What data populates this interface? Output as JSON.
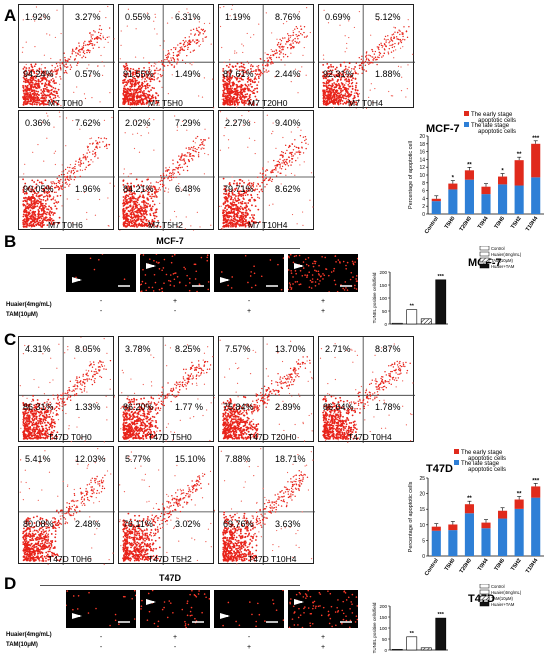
{
  "panels": {
    "A": {
      "letter": "A",
      "plots": [
        {
          "label": "M7 T0H0",
          "ul": "1.92%",
          "ur": "3.27%",
          "ll": "94.24%",
          "lr": "0.57%"
        },
        {
          "label": "M7 T5H0",
          "ul": "0.55%",
          "ur": "6.31%",
          "ll": "91.55%",
          "lr": "1.49%"
        },
        {
          "label": "M7 T20H0",
          "ul": "1.19%",
          "ur": "8.76%",
          "ll": "87.61%",
          "lr": "2.44%"
        },
        {
          "label": "M7 T0H4",
          "ul": "0.69%",
          "ur": "5.12%",
          "ll": "92.31%",
          "lr": "1.88%"
        },
        {
          "label": "M7 T0H6",
          "ul": "0.36%",
          "ur": "7.62%",
          "ll": "90.05%",
          "lr": "1.96%"
        },
        {
          "label": "M7 T5H2",
          "ul": "2.02%",
          "ur": "7.29%",
          "ll": "84.21%",
          "lr": "6.48%"
        },
        {
          "label": "M7 T10H4",
          "ul": "2.27%",
          "ur": "9.40%",
          "ll": "79.71%",
          "lr": "8.62%"
        }
      ]
    },
    "C": {
      "letter": "C",
      "plots": [
        {
          "label": "T47D T0H0",
          "ul": "4.31%",
          "ur": "8.05%",
          "ll": "86.31%",
          "lr": "1.33%"
        },
        {
          "label": "T47D T5H0",
          "ul": "3.78%",
          "ur": "8.25%",
          "ll": "86.20%",
          "lr": "1.77 %"
        },
        {
          "label": "T47D T20H0",
          "ul": "7.57%",
          "ur": "13.70%",
          "ll": "75.84%",
          "lr": "2.89%"
        },
        {
          "label": "T47D T0H4",
          "ul": "2.71%",
          "ur": "8.87%",
          "ll": "86.64%",
          "lr": "1.78%"
        },
        {
          "label": "T47D T0H6",
          "ul": "5.41%",
          "ur": "12.03%",
          "ll": "80.08%",
          "lr": "2.48%"
        },
        {
          "label": "T47D T5H2",
          "ul": "5.77%",
          "ur": "15.10%",
          "ll": "76.11%",
          "lr": "3.02%"
        },
        {
          "label": "T47D T10H4",
          "ul": "7.88%",
          "ur": "18.71%",
          "ll": "69.76%",
          "lr": "3.63%"
        }
      ]
    },
    "B": {
      "letter": "B",
      "title": "MCF-7",
      "huaier_label": "Huaier(4mg/mL)",
      "tam_label": "TAM(10μM)",
      "huaier": [
        "-",
        "+",
        "-",
        "+"
      ],
      "tam": [
        "-",
        "-",
        "+",
        "+"
      ]
    },
    "D": {
      "letter": "D",
      "title": "T47D",
      "huaier_label": "Huaier(4mg/mL)",
      "tam_label": "TAM(10μM)",
      "huaier": [
        "-",
        "+",
        "-",
        "+"
      ],
      "tam": [
        "-",
        "-",
        "+",
        "+"
      ]
    }
  },
  "chart_data": [
    {
      "type": "bar",
      "title": "MCF-7",
      "ylabel": "Percentage of apoptotic cell",
      "categories": [
        "Control",
        "T5H0",
        "T20H0",
        "T0H4",
        "T0H6",
        "T5H2",
        "T10H4"
      ],
      "ylim": [
        0,
        20
      ],
      "yticks": [
        0,
        2,
        4,
        6,
        8,
        10,
        12,
        14,
        16,
        18,
        20
      ],
      "series": [
        {
          "name": "The late stage apoptotic cells",
          "color": "#2e7fd6",
          "values": [
            3.3,
            6.3,
            8.8,
            5.1,
            7.6,
            7.3,
            9.4
          ]
        },
        {
          "name": "The early stage apoptotic cells",
          "color": "#e02a1c",
          "values": [
            0.6,
            1.5,
            2.4,
            1.9,
            2.0,
            6.5,
            8.6
          ]
        }
      ],
      "significance": [
        "",
        "*",
        "**",
        "",
        "*",
        "**",
        "***"
      ]
    },
    {
      "type": "bar",
      "title": "MCF-7",
      "ylabel": "TUNEL positive cells/field",
      "categories": [
        "Control",
        "Huaier(4mg/mL)",
        "TAM(10μM)",
        "Huaier+TAM"
      ],
      "ylim": [
        0,
        200
      ],
      "yticks": [
        0,
        50,
        100,
        150,
        200
      ],
      "values": [
        3,
        55,
        20,
        170
      ],
      "significance": [
        "",
        "**",
        "",
        "***"
      ]
    },
    {
      "type": "bar",
      "title": "T47D",
      "ylabel": "Percentage of apoptotic cells",
      "categories": [
        "Control",
        "T5H0",
        "T20H0",
        "T0H4",
        "T0H6",
        "T5H2",
        "T10H4"
      ],
      "ylim": [
        0,
        25
      ],
      "yticks": [
        0,
        5,
        10,
        15,
        20,
        25
      ],
      "series": [
        {
          "name": "The late stage apoptotic cells",
          "color": "#2e7fd6",
          "values": [
            8.1,
            8.3,
            13.7,
            8.9,
            12.0,
            15.1,
            18.7
          ]
        },
        {
          "name": "The early stage apoptotic cells",
          "color": "#e02a1c",
          "values": [
            1.3,
            1.8,
            2.9,
            1.8,
            2.5,
            3.0,
            3.6
          ]
        }
      ],
      "significance": [
        "",
        "",
        "**",
        "",
        "",
        "**",
        "***"
      ]
    },
    {
      "type": "bar",
      "title": "T47D",
      "ylabel": "TUNEL positive cells/field",
      "categories": [
        "Control",
        "Huaier(4mg/mL)",
        "TAM(10μM)",
        "Huaier+TAM"
      ],
      "ylim": [
        0,
        200
      ],
      "yticks": [
        0,
        50,
        100,
        150,
        200
      ],
      "values": [
        3,
        60,
        10,
        145
      ],
      "significance": [
        "",
        "**",
        "",
        "***"
      ]
    }
  ]
}
